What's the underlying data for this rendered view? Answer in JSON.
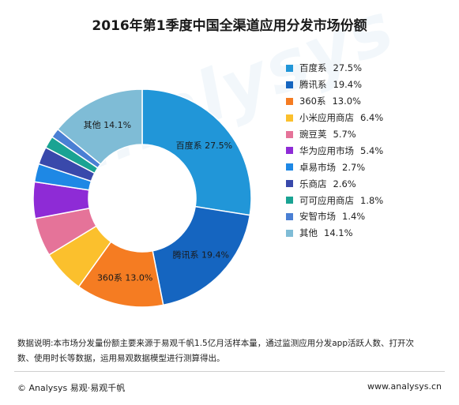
{
  "chart_data": {
    "type": "donut",
    "title": "2016年第1季度中国全渠道应用分发市场份额",
    "slices": [
      {
        "name": "百度系",
        "pct_label": "27.5%",
        "value": 27.5,
        "color": "#2196d8"
      },
      {
        "name": "腾讯系",
        "pct_label": "19.4%",
        "value": 19.4,
        "color": "#1565c0"
      },
      {
        "name": "360系",
        "pct_label": "13.0%",
        "value": 13.0,
        "color": "#f57c22"
      },
      {
        "name": "小米应用商店",
        "pct_label": "6.4%",
        "value": 6.4,
        "color": "#fbc02d"
      },
      {
        "name": "豌豆荚",
        "pct_label": "5.7%",
        "value": 5.7,
        "color": "#e57399"
      },
      {
        "name": "华为应用市场",
        "pct_label": "5.4%",
        "value": 5.4,
        "color": "#8e2bd6"
      },
      {
        "name": "卓易市场",
        "pct_label": "2.7%",
        "value": 2.7,
        "color": "#1e88e5"
      },
      {
        "name": "乐商店",
        "pct_label": "2.6%",
        "value": 2.6,
        "color": "#3949ab"
      },
      {
        "name": "可可应用商店",
        "pct_label": "1.8%",
        "value": 1.8,
        "color": "#1aa393"
      },
      {
        "name": "安智市场",
        "pct_label": "1.4%",
        "value": 1.4,
        "color": "#4a7fd4"
      },
      {
        "name": "其他",
        "pct_label": "14.1%",
        "value": 14.1,
        "color": "#7fbcd6"
      }
    ],
    "slice_labels": [
      {
        "text": "百度系  27.5%",
        "slice": 0
      },
      {
        "text": "腾讯系  19.4%",
        "slice": 1
      },
      {
        "text": "360系  13.0%",
        "slice": 2
      },
      {
        "text": "其他  14.1%",
        "slice": 10
      }
    ],
    "legend_position": "right"
  },
  "watermark": "analysys",
  "note": "数据说明:本市场分发量份额主要来源于易观千帆1.5亿月活样本量，通过监测应用分发app活跃人数、打开次数、使用时长等数据，运用易观数据模型进行测算得出。",
  "footer": {
    "left": "© Analysys 易观·易观千帆",
    "right": "www.analysys.cn"
  }
}
